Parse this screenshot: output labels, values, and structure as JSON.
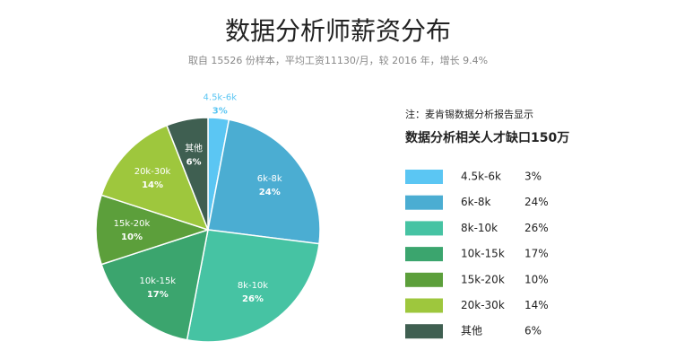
{
  "chart_data": {
    "type": "pie",
    "title": "数据分析师薪资分布",
    "subtitle": "取自 15526 份样本，平均工资11130/月，较 2016 年，增长 9.4%",
    "annotation": "注：麦肯锡数据分析报告显示",
    "legend_title": "数据分析相关人才缺口150万",
    "categories": [
      "4.5k-6k",
      "6k-8k",
      "8k-10k",
      "10k-15k",
      "15k-20k",
      "20k-30k",
      "其他"
    ],
    "values": [
      3,
      24,
      26,
      17,
      10,
      14,
      6
    ],
    "value_labels": [
      "3%",
      "24%",
      "26%",
      "17%",
      "10%",
      "14%",
      "6%"
    ],
    "colors": [
      "#5bc6f3",
      "#4badd2",
      "#46c3a3",
      "#3ba56e",
      "#5c9f3b",
      "#9ec73d",
      "#3f5f51"
    ],
    "legend": "right"
  }
}
